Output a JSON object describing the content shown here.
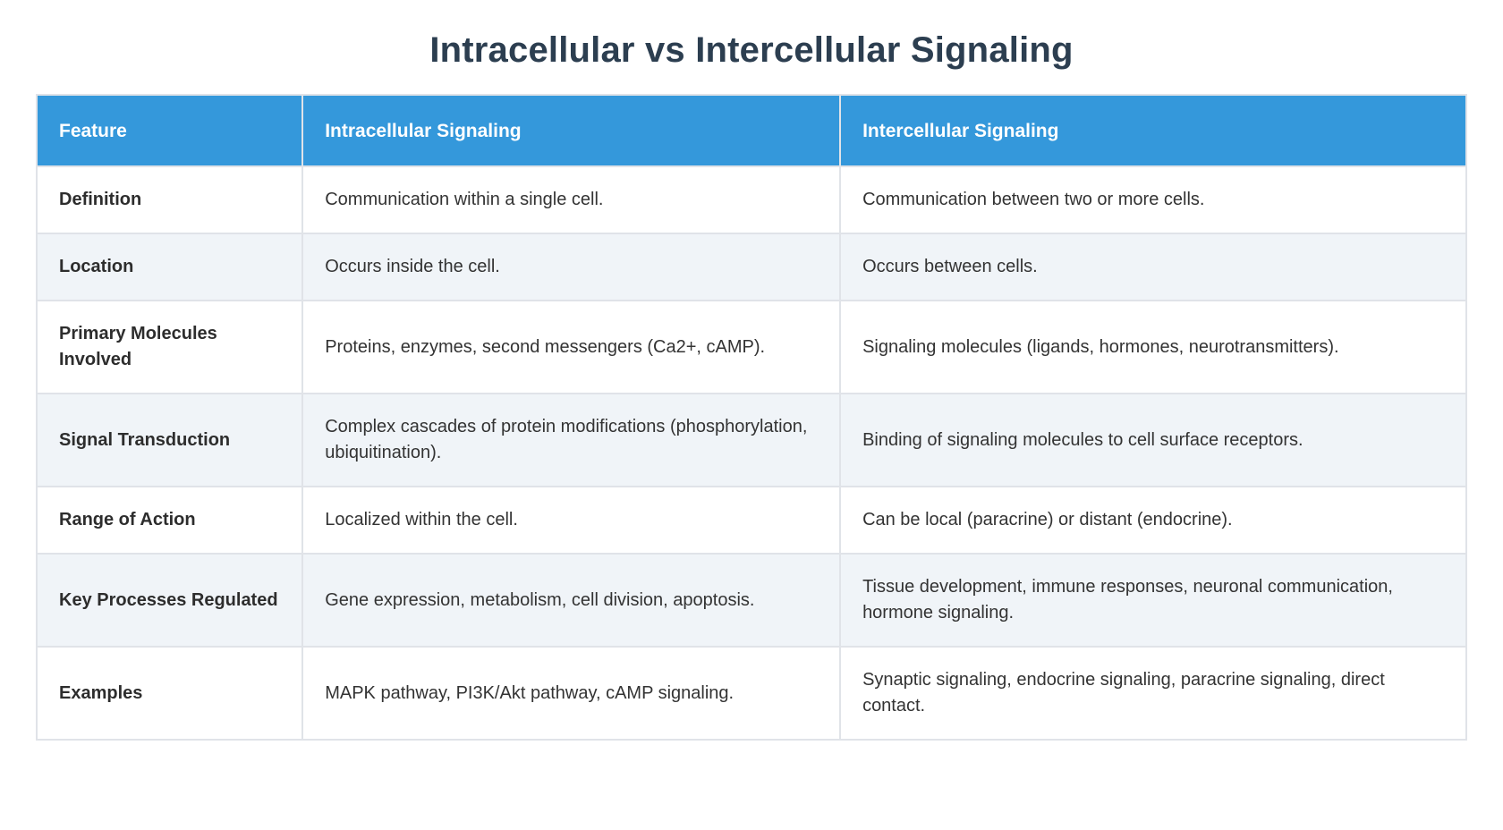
{
  "title": "Intracellular vs Intercellular Signaling",
  "table": {
    "headers": [
      "Feature",
      "Intracellular Signaling",
      "Intercellular Signaling"
    ],
    "rows": [
      {
        "feature": "Definition",
        "intracellular": "Communication within a single cell.",
        "intercellular": "Communication between two or more cells."
      },
      {
        "feature": "Location",
        "intracellular": "Occurs inside the cell.",
        "intercellular": "Occurs between cells."
      },
      {
        "feature": "Primary Molecules Involved",
        "intracellular": "Proteins, enzymes, second messengers (Ca2+, cAMP).",
        "intercellular": "Signaling molecules (ligands, hormones, neurotransmitters)."
      },
      {
        "feature": "Signal Transduction",
        "intracellular": "Complex cascades of protein modifications (phosphorylation, ubiquitination).",
        "intercellular": "Binding of signaling molecules to cell surface receptors."
      },
      {
        "feature": "Range of Action",
        "intracellular": "Localized within the cell.",
        "intercellular": "Can be local (paracrine) or distant (endocrine)."
      },
      {
        "feature": "Key Processes Regulated",
        "intracellular": "Gene expression, metabolism, cell division, apoptosis.",
        "intercellular": "Tissue development, immune responses, neuronal communication, hormone signaling."
      },
      {
        "feature": "Examples",
        "intracellular": "MAPK pathway, PI3K/Akt pathway, cAMP signaling.",
        "intercellular": "Synaptic signaling, endocrine signaling, paracrine signaling, direct contact."
      }
    ]
  },
  "colors": {
    "header_bg": "#3498db",
    "header_text": "#ffffff",
    "title_text": "#2c3e50",
    "row_alt_bg": "#f0f4f8",
    "body_text": "#333333",
    "border": "#e0e3e8"
  }
}
